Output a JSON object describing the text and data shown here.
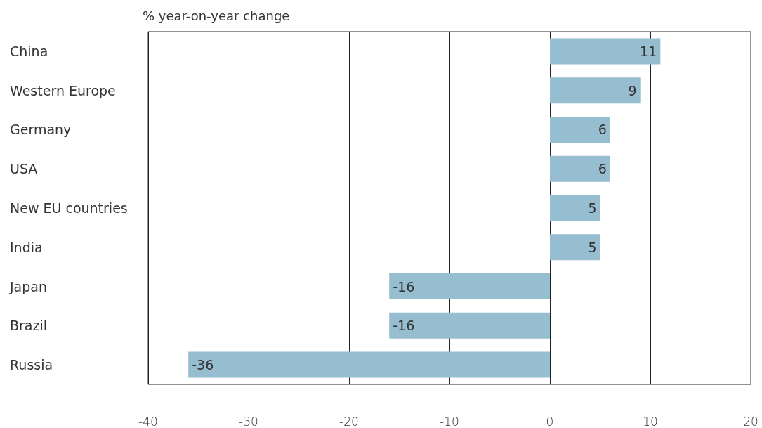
{
  "chart_data": {
    "type": "bar",
    "orientation": "horizontal",
    "xlabel": "% year-on-year change",
    "categories": [
      "China",
      "Western Europe",
      "Germany",
      "USA",
      "New EU countries",
      "India",
      "Japan",
      "Brazil",
      "Russia"
    ],
    "values": [
      11,
      9,
      6,
      6,
      5,
      5,
      -16,
      -16,
      -36
    ],
    "color": "#97bdd0",
    "xlim": [
      -40,
      20
    ],
    "xticks": [
      -40,
      -30,
      -20,
      -10,
      0,
      10,
      20
    ],
    "grid": "x",
    "data_labels": true
  }
}
